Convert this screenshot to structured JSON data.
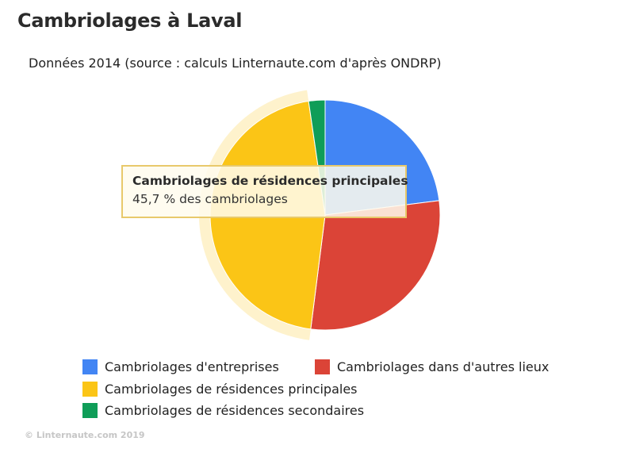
{
  "header": {
    "title": "Cambriolages à Laval",
    "subtitle": "Données 2014 (source : calculs Linternaute.com d'après ONDRP)"
  },
  "tooltip": {
    "title": "Cambriolages de résidences principales",
    "value": "45,7 % des cambriolages"
  },
  "footer": {
    "copyright": "© Linternaute.com 2019"
  },
  "chart_data": {
    "type": "pie",
    "title": "Cambriolages à Laval",
    "subtitle": "Données 2014 (source : calculs Linternaute.com d'après ONDRP)",
    "unit": "%",
    "legend_position": "bottom",
    "highlighted": "Cambriolages de résidences principales",
    "slices": [
      {
        "label": "Cambriolages d'entreprises",
        "value": 23.0,
        "color": "#4285f4"
      },
      {
        "label": "Cambriolages dans d'autres lieux",
        "value": 29.0,
        "color": "#db4437"
      },
      {
        "label": "Cambriolages de résidences principales",
        "value": 45.7,
        "color": "#fbc516"
      },
      {
        "label": "Cambriolages de résidences secondaires",
        "value": 2.3,
        "color": "#0f9d58"
      }
    ]
  }
}
